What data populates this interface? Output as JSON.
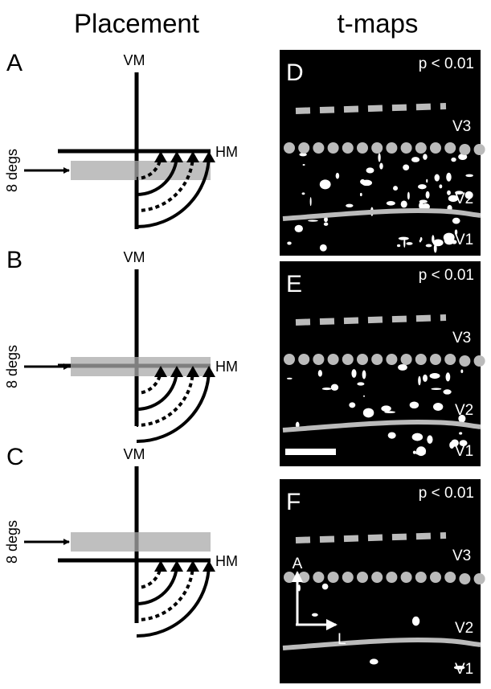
{
  "headers": [
    "Placement",
    "t-maps"
  ],
  "placement_panels": [
    {
      "letter": "A",
      "vm": "VM",
      "hm": "HM",
      "size_label": "8 degs"
    },
    {
      "letter": "B",
      "vm": "VM",
      "hm": "HM",
      "size_label": "8 degs"
    },
    {
      "letter": "C",
      "vm": "VM",
      "hm": "HM",
      "size_label": "8 degs"
    }
  ],
  "tmap_panels": [
    {
      "letter": "D",
      "threshold": "p < 0.01",
      "areas": [
        "V3",
        "V2",
        "V1"
      ]
    },
    {
      "letter": "E",
      "threshold": "p < 0.01",
      "areas": [
        "V3",
        "V2",
        "V1"
      ]
    },
    {
      "letter": "F",
      "threshold": "p < 0.01",
      "areas": [
        "V3",
        "V2",
        "V1"
      ]
    }
  ],
  "axis_labels": [
    "A",
    "L"
  ]
}
